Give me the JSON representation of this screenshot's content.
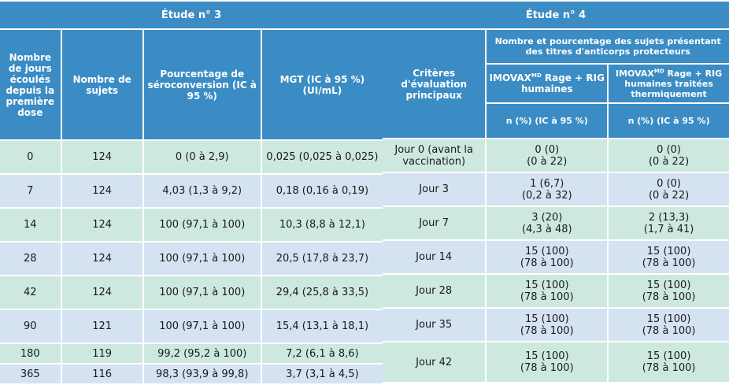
{
  "study3": {
    "title": "Étude n° 3",
    "headers": {
      "days": "Nombre de jours écoulés depuis la première dose",
      "subjects": "Nombre de sujets",
      "sero": "Pourcentage de séroconversion (IC à 95 %)",
      "mgt": "MGT (IC à 95 %) (UI/mL)"
    },
    "rows": [
      {
        "days": "0",
        "subjects": "124",
        "sero": "0 (0 à 2,9)",
        "mgt": "0,025 (0,025 à 0,025)"
      },
      {
        "days": "7",
        "subjects": "124",
        "sero": "4,03 (1,3 à 9,2)",
        "mgt": "0,18 (0,16 à 0,19)"
      },
      {
        "days": "14",
        "subjects": "124",
        "sero": "100 (97,1 à 100)",
        "mgt": "10,3 (8,8 à 12,1)"
      },
      {
        "days": "28",
        "subjects": "124",
        "sero": "100 (97,1 à 100)",
        "mgt": "20,5 (17,8 à 23,7)"
      },
      {
        "days": "42",
        "subjects": "124",
        "sero": "100 (97,1 à 100)",
        "mgt": "29,4 (25,8 à 33,5)"
      },
      {
        "days": "90",
        "subjects": "121",
        "sero": "100 (97,1 à 100)",
        "mgt": "15,4 (13,1 à 18,1)"
      },
      {
        "days": "180",
        "subjects": "119",
        "sero": "99,2 (95,2 à 100)",
        "mgt": "7,2 (6,1 à 8,6)"
      },
      {
        "days": "365",
        "subjects": "116",
        "sero": "98,3 (93,9 à 99,8)",
        "mgt": "3,7 (3,1 à 4,5)"
      }
    ]
  },
  "study4": {
    "title": "Étude n° 4",
    "headers": {
      "criteria": "Critères d'évaluation principaux",
      "group": "Nombre et pourcentage des sujets présentant des titres d'anticorps protecteurs",
      "col1_a": "IMOVAX",
      "col1_sup": "MD",
      "col1_b": " Rage + RIG humaines",
      "col2_a": "IMOVAX",
      "col2_sup": "MD",
      "col2_b": " Rage + RIG humaines traitées thermiquement",
      "npct1": "n (%) (IC à 95 %)",
      "npct2": "n (%) (IC à 95 %)"
    },
    "rows": [
      {
        "criteria": "Jour 0 (avant la vaccination)",
        "c1a": "0 (0)",
        "c1b": "(0 à 22)",
        "c2a": "0 (0)",
        "c2b": "(0 à 22)"
      },
      {
        "criteria": "Jour 3",
        "c1a": "1 (6,7)",
        "c1b": "(0,2 à 32)",
        "c2a": "0 (0)",
        "c2b": "(0 à 22)"
      },
      {
        "criteria": "Jour 7",
        "c1a": "3 (20)",
        "c1b": "(4,3 à 48)",
        "c2a": "2 (13,3)",
        "c2b": "(1,7 à 41)"
      },
      {
        "criteria": "Jour 14",
        "c1a": "15 (100)",
        "c1b": "(78 à 100)",
        "c2a": "15 (100)",
        "c2b": "(78 à 100)"
      },
      {
        "criteria": "Jour 28",
        "c1a": "15 (100)",
        "c1b": "(78 à 100)",
        "c2a": "15 (100)",
        "c2b": "(78 à 100)"
      },
      {
        "criteria": "Jour 35",
        "c1a": "15 (100)",
        "c1b": "(78 à 100)",
        "c2a": "15 (100)",
        "c2b": "(78 à 100)"
      },
      {
        "criteria": "Jour 42",
        "c1a": "15 (100)",
        "c1b": "(78 à 100)",
        "c2a": "15 (100)",
        "c2b": "(78 à 100)"
      }
    ]
  },
  "colors": {
    "header": "#3b8cc4",
    "green": "#cde9df",
    "blue": "#d5e2f1"
  }
}
